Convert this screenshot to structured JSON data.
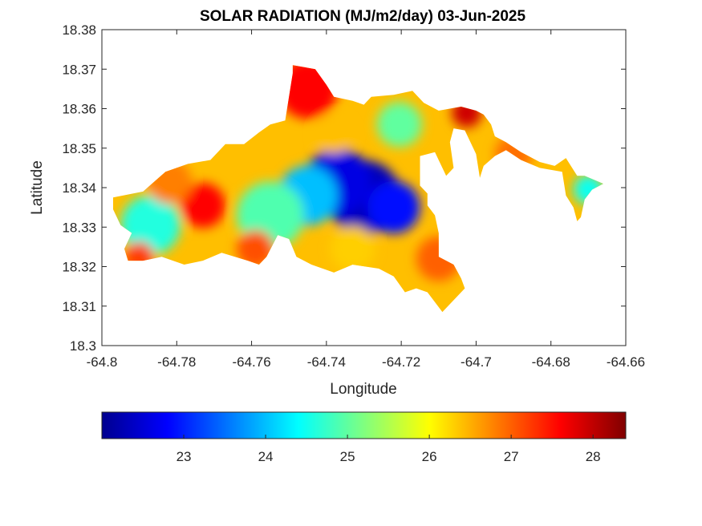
{
  "chart_data": {
    "type": "heatmap",
    "title": "SOLAR RADIATION (MJ/m2/day) 03-Jun-2025",
    "xlabel": "Longitude",
    "ylabel": "Latitude",
    "xlim": [
      -64.8,
      -64.66
    ],
    "ylim": [
      18.3,
      18.38
    ],
    "xticks": [
      -64.8,
      -64.78,
      -64.76,
      -64.74,
      -64.72,
      -64.7,
      -64.68,
      -64.66
    ],
    "xtick_labels": [
      "-64.8",
      "-64.78",
      "-64.76",
      "-64.74",
      "-64.72",
      "-64.7",
      "-64.68",
      "-64.66"
    ],
    "yticks": [
      18.3,
      18.31,
      18.32,
      18.33,
      18.34,
      18.35,
      18.36,
      18.37,
      18.38
    ],
    "ytick_labels": [
      "18.3",
      "18.31",
      "18.32",
      "18.33",
      "18.34",
      "18.35",
      "18.36",
      "18.37",
      "18.38"
    ],
    "colormap": "jet",
    "colorbar": {
      "position": "bottom",
      "range": [
        22.0,
        28.4
      ],
      "ticks": [
        23,
        24,
        25,
        26,
        27,
        28
      ],
      "tick_labels": [
        "23",
        "24",
        "25",
        "26",
        "27",
        "28"
      ]
    },
    "grid": false,
    "land_outline": [
      [
        -64.797,
        18.3375
      ],
      [
        -64.789,
        18.339
      ],
      [
        -64.783,
        18.344
      ],
      [
        -64.777,
        18.346
      ],
      [
        -64.771,
        18.347
      ],
      [
        -64.767,
        18.351
      ],
      [
        -64.762,
        18.351
      ],
      [
        -64.758,
        18.354
      ],
      [
        -64.755,
        18.356
      ],
      [
        -64.751,
        18.357
      ],
      [
        -64.749,
        18.369
      ],
      [
        -64.749,
        18.371
      ],
      [
        -64.743,
        18.37
      ],
      [
        -64.74,
        18.366
      ],
      [
        -64.738,
        18.363
      ],
      [
        -64.733,
        18.362
      ],
      [
        -64.73,
        18.361
      ],
      [
        -64.728,
        18.363
      ],
      [
        -64.722,
        18.3635
      ],
      [
        -64.717,
        18.3645
      ],
      [
        -64.714,
        18.3615
      ],
      [
        -64.71,
        18.3595
      ],
      [
        -64.704,
        18.3605
      ],
      [
        -64.7,
        18.3595
      ],
      [
        -64.698,
        18.3585
      ],
      [
        -64.696,
        18.356
      ],
      [
        -64.695,
        18.353
      ],
      [
        -64.692,
        18.3515
      ],
      [
        -64.688,
        18.349
      ],
      [
        -64.683,
        18.3465
      ],
      [
        -64.679,
        18.3455
      ],
      [
        -64.676,
        18.3475
      ],
      [
        -64.673,
        18.343
      ],
      [
        -64.671,
        18.343
      ],
      [
        -64.666,
        18.341
      ],
      [
        -64.669,
        18.3395
      ],
      [
        -64.671,
        18.337
      ],
      [
        -64.672,
        18.3325
      ],
      [
        -64.673,
        18.3315
      ],
      [
        -64.674,
        18.335
      ],
      [
        -64.676,
        18.338
      ],
      [
        -64.677,
        18.344
      ],
      [
        -64.683,
        18.345
      ],
      [
        -64.688,
        18.347
      ],
      [
        -64.692,
        18.3495
      ],
      [
        -64.695,
        18.348
      ],
      [
        -64.698,
        18.3455
      ],
      [
        -64.699,
        18.3425
      ],
      [
        -64.7,
        18.3485
      ],
      [
        -64.703,
        18.3545
      ],
      [
        -64.706,
        18.355
      ],
      [
        -64.707,
        18.3515
      ],
      [
        -64.706,
        18.345
      ],
      [
        -64.708,
        18.343
      ],
      [
        -64.711,
        18.349
      ],
      [
        -64.715,
        18.348
      ],
      [
        -64.715,
        18.3435
      ],
      [
        -64.715,
        18.3405
      ],
      [
        -64.713,
        18.3385
      ],
      [
        -64.713,
        18.3355
      ],
      [
        -64.711,
        18.333
      ],
      [
        -64.71,
        18.3285
      ],
      [
        -64.71,
        18.3225
      ],
      [
        -64.706,
        18.3205
      ],
      [
        -64.704,
        18.317
      ],
      [
        -64.703,
        18.3145
      ],
      [
        -64.706,
        18.3115
      ],
      [
        -64.709,
        18.3085
      ],
      [
        -64.713,
        18.3135
      ],
      [
        -64.716,
        18.3145
      ],
      [
        -64.719,
        18.3135
      ],
      [
        -64.722,
        18.3175
      ],
      [
        -64.726,
        18.3195
      ],
      [
        -64.733,
        18.3205
      ],
      [
        -64.738,
        18.3185
      ],
      [
        -64.744,
        18.3205
      ],
      [
        -64.748,
        18.3225
      ],
      [
        -64.75,
        18.327
      ],
      [
        -64.753,
        18.328
      ],
      [
        -64.756,
        18.3225
      ],
      [
        -64.758,
        18.3205
      ],
      [
        -64.761,
        18.3215
      ],
      [
        -64.768,
        18.3235
      ],
      [
        -64.773,
        18.3215
      ],
      [
        -64.778,
        18.3205
      ],
      [
        -64.784,
        18.3225
      ],
      [
        -64.789,
        18.3215
      ],
      [
        -64.793,
        18.3215
      ],
      [
        -64.794,
        18.3245
      ],
      [
        -64.792,
        18.3285
      ],
      [
        -64.795,
        18.3305
      ],
      [
        -64.797,
        18.3345
      ]
    ],
    "field_centers": [
      {
        "x": -64.73,
        "y": 18.3375,
        "value": 22.3,
        "r": 0.01
      },
      {
        "x": -64.737,
        "y": 18.3415,
        "value": 22.6,
        "r": 0.009
      },
      {
        "x": -64.722,
        "y": 18.335,
        "value": 22.9,
        "r": 0.007
      },
      {
        "x": -64.745,
        "y": 18.338,
        "value": 24.0,
        "r": 0.008
      },
      {
        "x": -64.755,
        "y": 18.333,
        "value": 24.9,
        "r": 0.009
      },
      {
        "x": -64.787,
        "y": 18.3305,
        "value": 24.6,
        "r": 0.008
      },
      {
        "x": -64.773,
        "y": 18.3355,
        "value": 27.6,
        "r": 0.006
      },
      {
        "x": -64.782,
        "y": 18.3415,
        "value": 26.8,
        "r": 0.006
      },
      {
        "x": -64.745,
        "y": 18.365,
        "value": 27.6,
        "r": 0.008
      },
      {
        "x": -64.738,
        "y": 18.3535,
        "value": 26.4,
        "r": 0.005
      },
      {
        "x": -64.7205,
        "y": 18.356,
        "value": 25.0,
        "r": 0.006
      },
      {
        "x": -64.7025,
        "y": 18.359,
        "value": 27.9,
        "r": 0.004
      },
      {
        "x": -64.69,
        "y": 18.3485,
        "value": 26.9,
        "r": 0.005
      },
      {
        "x": -64.67,
        "y": 18.3395,
        "value": 24.5,
        "r": 0.004
      },
      {
        "x": -64.71,
        "y": 18.322,
        "value": 27.0,
        "r": 0.006
      },
      {
        "x": -64.733,
        "y": 18.3245,
        "value": 26.3,
        "r": 0.006
      },
      {
        "x": -64.759,
        "y": 18.3245,
        "value": 27.1,
        "r": 0.005
      },
      {
        "x": -64.79,
        "y": 18.3225,
        "value": 27.2,
        "r": 0.004
      }
    ],
    "background_value": 26.4
  }
}
